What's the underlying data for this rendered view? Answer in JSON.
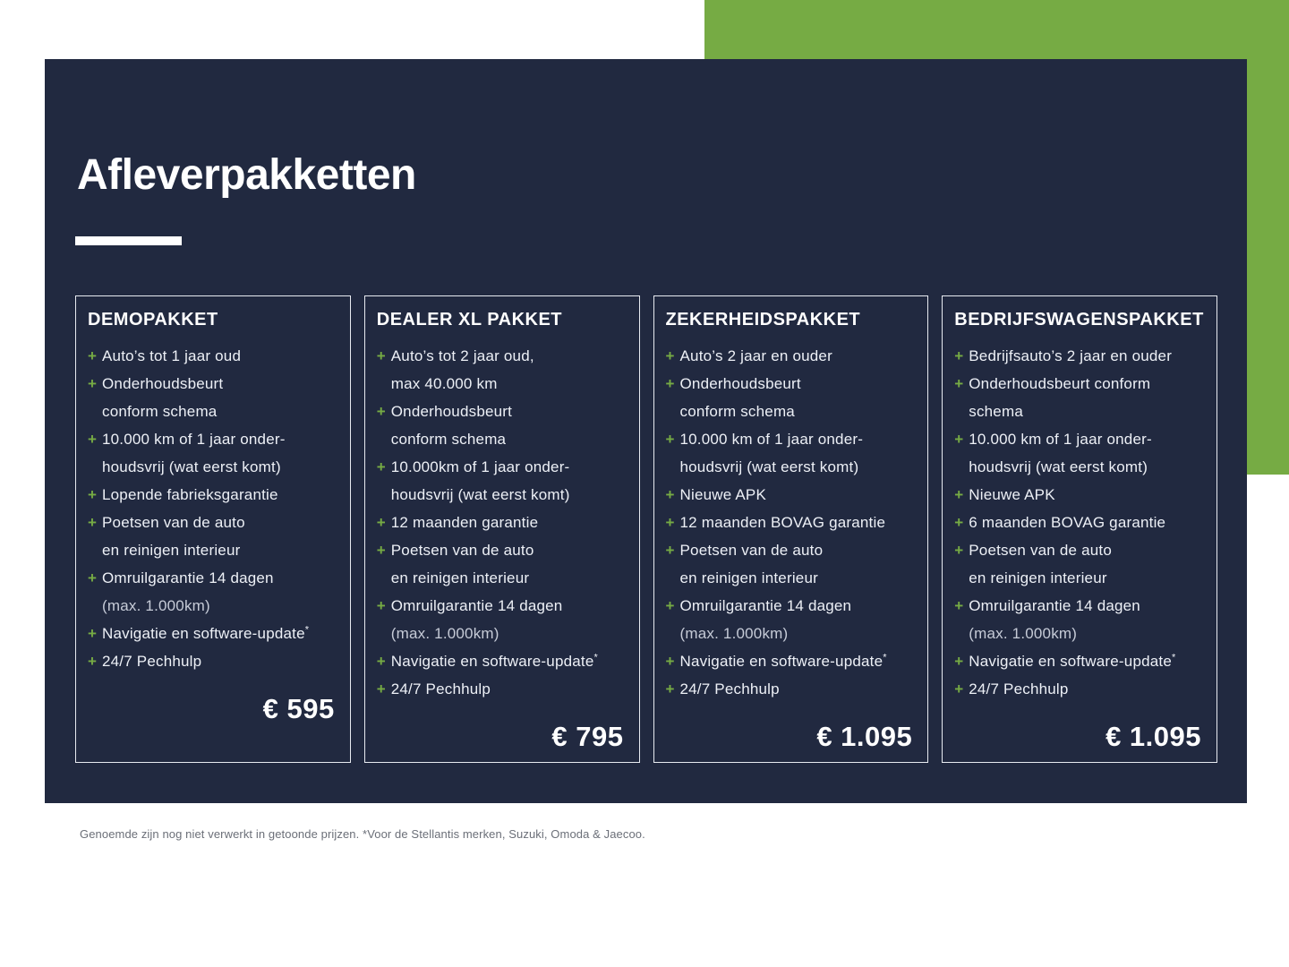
{
  "page": {
    "title": "Afleverpakketten",
    "footnote": "Genoemde zijn nog niet verwerkt in getoonde prijzen. *Voor de Stellantis merken, Suzuki, Omoda & Jaecoo.",
    "colors": {
      "page_bg": "#FFFFFF",
      "navy": "#212940",
      "green": "#76AB44",
      "card_border": "#E8EBF1",
      "body_text": "#EDF0F6",
      "muted_text": "#C6CBD7",
      "price_text": "#FFFFFF",
      "footnote_text": "#6B6F78"
    }
  },
  "packages": [
    {
      "name": "DEMOPAKKET",
      "price": "€ 595",
      "features": [
        {
          "lines": [
            {
              "t": "Auto’s tot 1 jaar oud"
            }
          ]
        },
        {
          "lines": [
            {
              "t": "Onderhoudsbeurt"
            },
            {
              "t": "conform schema"
            }
          ]
        },
        {
          "lines": [
            {
              "t": "10.000 km of 1 jaar onder-"
            },
            {
              "t": "houdsvrij (wat eerst komt)"
            }
          ]
        },
        {
          "lines": [
            {
              "t": "Lopende fabrieksgarantie"
            }
          ]
        },
        {
          "lines": [
            {
              "t": "Poetsen van de auto"
            },
            {
              "t": "en reinigen interieur"
            }
          ]
        },
        {
          "lines": [
            {
              "t": "Omruilgarantie 14 dagen"
            },
            {
              "t": "(max. 1.000km)",
              "muted": true
            }
          ]
        },
        {
          "lines": [
            {
              "t": "Navigatie en software-update",
              "sup": "*"
            }
          ]
        },
        {
          "lines": [
            {
              "t": "24/7 Pechhulp"
            }
          ]
        }
      ]
    },
    {
      "name": "DEALER XL PAKKET",
      "price": "€ 795",
      "features": [
        {
          "lines": [
            {
              "t": "Auto’s tot 2 jaar oud,"
            },
            {
              "t": "max 40.000 km"
            }
          ]
        },
        {
          "lines": [
            {
              "t": "Onderhoudsbeurt"
            },
            {
              "t": "conform schema"
            }
          ]
        },
        {
          "lines": [
            {
              "t": "10.000km of 1 jaar onder-"
            },
            {
              "t": "houdsvrij (wat eerst komt)"
            }
          ]
        },
        {
          "lines": [
            {
              "t": "12 maanden garantie"
            }
          ]
        },
        {
          "lines": [
            {
              "t": "Poetsen van de auto"
            },
            {
              "t": "en reinigen interieur"
            }
          ]
        },
        {
          "lines": [
            {
              "t": "Omruilgarantie 14 dagen"
            },
            {
              "t": "(max. 1.000km)",
              "muted": true
            }
          ]
        },
        {
          "lines": [
            {
              "t": "Navigatie en software-update",
              "sup": "*"
            }
          ]
        },
        {
          "lines": [
            {
              "t": "24/7 Pechhulp"
            }
          ]
        }
      ]
    },
    {
      "name": "ZEKERHEIDSPAKKET",
      "price": "€ 1.095",
      "features": [
        {
          "lines": [
            {
              "t": "Auto’s 2 jaar en ouder"
            }
          ]
        },
        {
          "lines": [
            {
              "t": "Onderhoudsbeurt"
            },
            {
              "t": "conform schema"
            }
          ]
        },
        {
          "lines": [
            {
              "t": "10.000 km of 1 jaar onder-"
            },
            {
              "t": "houdsvrij (wat eerst komt)"
            }
          ]
        },
        {
          "lines": [
            {
              "t": "Nieuwe APK"
            }
          ]
        },
        {
          "lines": [
            {
              "t": "12 maanden BOVAG garantie"
            }
          ]
        },
        {
          "lines": [
            {
              "t": "Poetsen van de auto"
            },
            {
              "t": "en reinigen interieur"
            }
          ]
        },
        {
          "lines": [
            {
              "t": "Omruilgarantie 14 dagen"
            },
            {
              "t": "(max. 1.000km)",
              "muted": true
            }
          ]
        },
        {
          "lines": [
            {
              "t": "Navigatie en software-update",
              "sup": "*"
            }
          ]
        },
        {
          "lines": [
            {
              "t": "24/7 Pechhulp"
            }
          ]
        }
      ]
    },
    {
      "name": "BEDRIJFSWAGENSPAKKET",
      "price": "€ 1.095",
      "features": [
        {
          "lines": [
            {
              "t": "Bedrijfsauto’s 2 jaar en ouder"
            }
          ]
        },
        {
          "lines": [
            {
              "t": "Onderhoudsbeurt conform"
            },
            {
              "t": "schema"
            }
          ]
        },
        {
          "lines": [
            {
              "t": "10.000 km of 1 jaar onder-"
            },
            {
              "t": "houdsvrij (wat eerst komt)"
            }
          ]
        },
        {
          "lines": [
            {
              "t": "Nieuwe APK"
            }
          ]
        },
        {
          "lines": [
            {
              "t": "6 maanden BOVAG garantie"
            }
          ]
        },
        {
          "lines": [
            {
              "t": "Poetsen van de auto"
            },
            {
              "t": "en reinigen interieur"
            }
          ]
        },
        {
          "lines": [
            {
              "t": "Omruilgarantie 14 dagen"
            },
            {
              "t": "(max. 1.000km)",
              "muted": true
            }
          ]
        },
        {
          "lines": [
            {
              "t": "Navigatie en software-update",
              "sup": "*"
            }
          ]
        },
        {
          "lines": [
            {
              "t": "24/7 Pechhulp"
            }
          ]
        }
      ]
    }
  ]
}
